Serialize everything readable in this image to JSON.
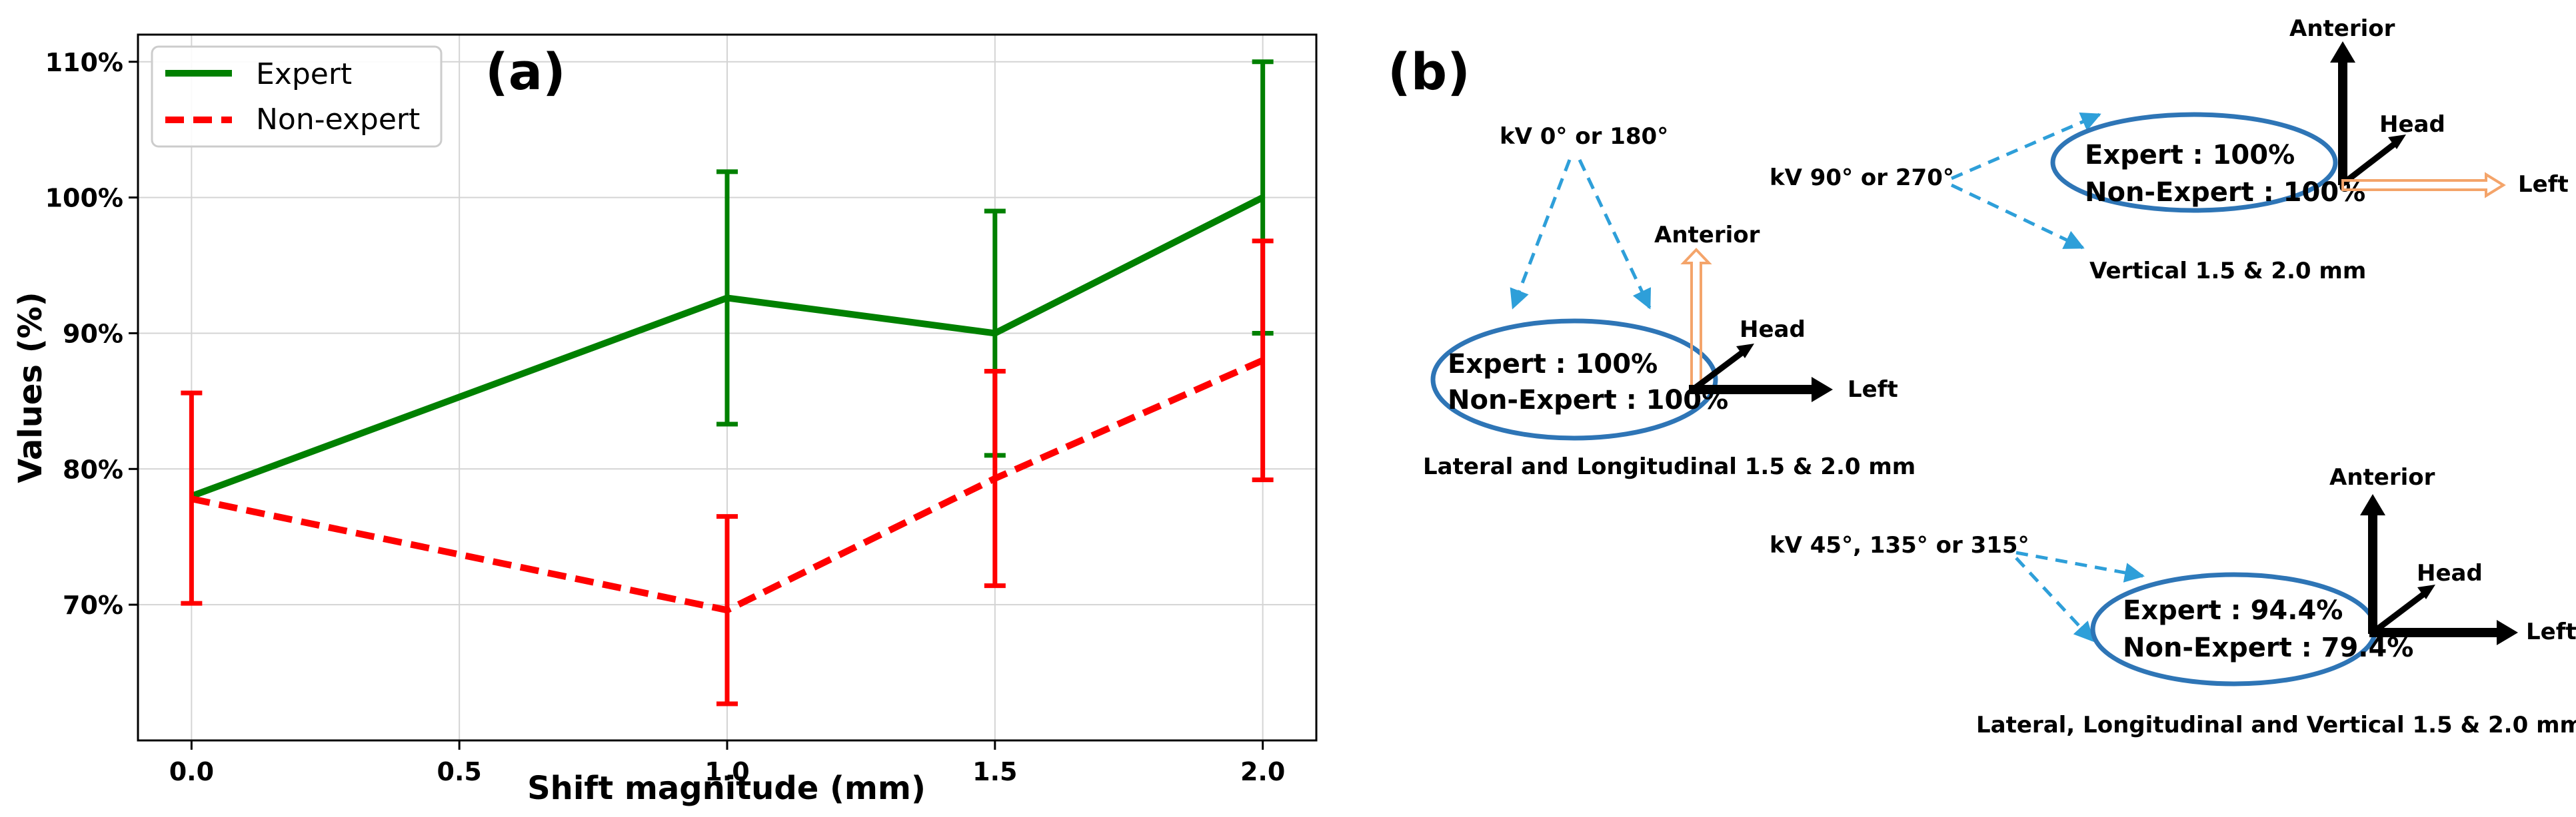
{
  "chart_data": {
    "type": "line",
    "panel_label": "(a)",
    "xlabel": "Shift magnitude (mm)",
    "ylabel": "Values (%)",
    "xlim": [
      -0.1,
      2.1
    ],
    "ylim": [
      60.0,
      112.0
    ],
    "x_ticks": [
      0.0,
      0.5,
      1.0,
      1.5,
      2.0
    ],
    "x_tick_labels": [
      "0.0",
      "0.5",
      "1.0",
      "1.5",
      "2.0"
    ],
    "y_ticks": [
      70,
      80,
      90,
      100,
      110
    ],
    "y_tick_labels": [
      "70%",
      "80%",
      "90%",
      "100%",
      "110%"
    ],
    "grid": true,
    "legend_position": "top-left",
    "series": [
      {
        "name": "Expert",
        "color": "#008000",
        "style": "solid",
        "x": [
          0.0,
          1.0,
          1.5,
          2.0
        ],
        "y": [
          78,
          92.6,
          90,
          100
        ],
        "err_low": [
          78,
          83.3,
          81,
          90
        ],
        "err_high": [
          78,
          101.9,
          99,
          110
        ]
      },
      {
        "name": "Non-expert",
        "color": "#ff0000",
        "style": "dashed",
        "x": [
          0.0,
          1.0,
          1.5,
          2.0
        ],
        "y": [
          77.8,
          69.6,
          79.3,
          88
        ],
        "err_low": [
          70.1,
          62.7,
          71.4,
          79.2
        ],
        "err_high": [
          85.6,
          76.5,
          87.2,
          96.8
        ]
      }
    ]
  },
  "panel_b": {
    "label": "(b)",
    "colors": {
      "ellipse": "#2e75b6",
      "dashed_arrow": "#2e9fd9",
      "anterior_hollow": "#f4a46a",
      "left_hollow": "#f4a46a",
      "axes": "#000000"
    },
    "diagram1": {
      "source": "kV 0° or 180°",
      "expert": "Expert : 100%",
      "non_expert": "Non-Expert : 100%",
      "caption": "Lateral and Longitudinal 1.5 & 2.0 mm",
      "axis_anterior": "Anterior",
      "axis_head": "Head",
      "axis_left": "Left"
    },
    "diagram2": {
      "source": "kV 90° or 270°",
      "expert": "Expert : 100%",
      "non_expert": "Non-Expert : 100%",
      "caption": "Vertical 1.5 & 2.0 mm",
      "axis_anterior": "Anterior",
      "axis_head": "Head",
      "axis_left": "Left"
    },
    "diagram3": {
      "source": "kV 45°, 135° or 315°",
      "expert": "Expert : 94.4%",
      "non_expert": "Non-Expert : 79.4%",
      "caption": "Lateral, Longitudinal and Vertical 1.5 & 2.0 mm",
      "axis_anterior": "Anterior",
      "axis_head": "Head",
      "axis_left": "Left"
    }
  }
}
